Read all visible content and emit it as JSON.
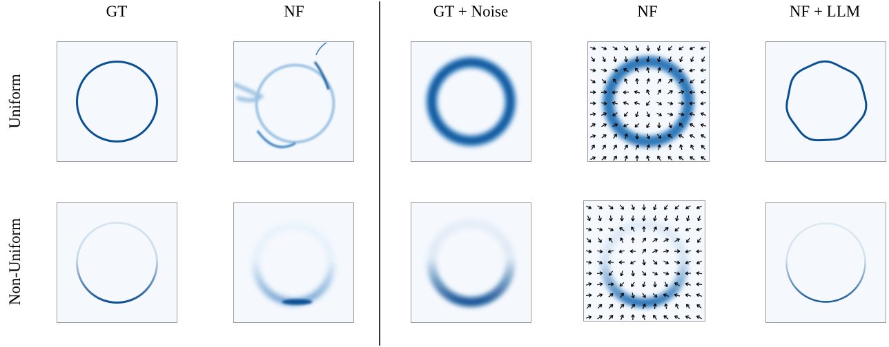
{
  "columns": [
    "GT",
    "NF",
    "GT + Noise",
    "NF",
    "NF + LLM"
  ],
  "rows": [
    "Uniform",
    "Non-Uniform"
  ],
  "colors": {
    "panel_bg": "#f5f9fe",
    "panel_border": "#9a9a9a",
    "ring_dark": "#0b4f93",
    "ring_mid": "#2f78b9",
    "ring_light": "#9cc3e2",
    "arrow": "#000000"
  },
  "panels": [
    {
      "row": "Uniform",
      "column": "GT",
      "content": "thin-uniform-ring",
      "has_vector_field": false
    },
    {
      "row": "Uniform",
      "column": "NF",
      "content": "faint-ring-with-artifacts",
      "has_vector_field": false
    },
    {
      "row": "Uniform",
      "column": "GT + Noise",
      "content": "thick-blurred-ring",
      "has_vector_field": false
    },
    {
      "row": "Uniform",
      "column": "NF",
      "content": "thick-ring-with-vector-field",
      "has_vector_field": true
    },
    {
      "row": "Uniform",
      "column": "NF + LLM",
      "content": "thin-wavy-ring",
      "has_vector_field": false
    },
    {
      "row": "Non-Uniform",
      "column": "GT",
      "content": "bottom-heavy-thin-ring",
      "has_vector_field": false
    },
    {
      "row": "Non-Uniform",
      "column": "NF",
      "content": "blurred-bottom-arc",
      "has_vector_field": false
    },
    {
      "row": "Non-Uniform",
      "column": "GT + Noise",
      "content": "bottom-heavy-thick-ring",
      "has_vector_field": false
    },
    {
      "row": "Non-Uniform",
      "column": "NF",
      "content": "bottom-arc-with-vector-field",
      "has_vector_field": true
    },
    {
      "row": "Non-Uniform",
      "column": "NF + LLM",
      "content": "bottom-heavy-thin-ring",
      "has_vector_field": false
    }
  ]
}
